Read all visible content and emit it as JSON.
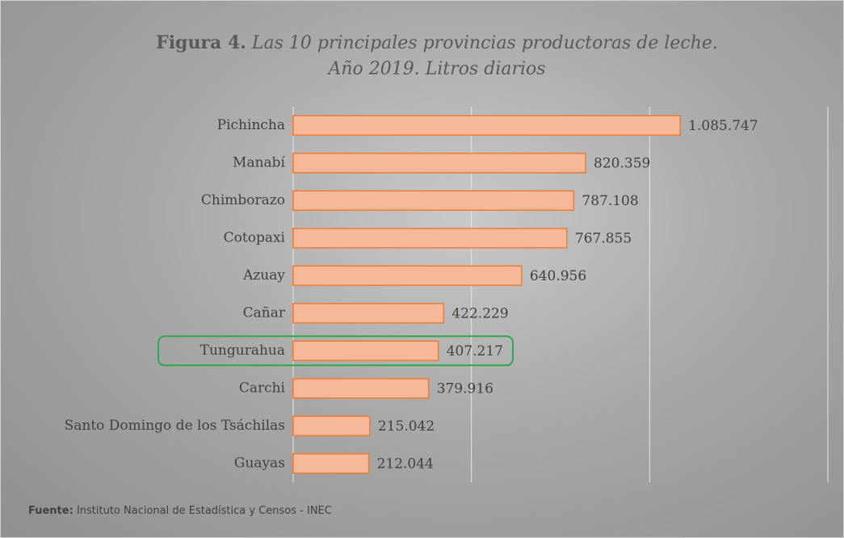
{
  "chart_data": {
    "type": "bar",
    "orientation": "horizontal",
    "figure_label": "Figura 4.",
    "title": "Las 10 principales provincias productoras de leche. Año 2019. Litros diarios",
    "categories": [
      "Pichincha",
      "Manabí",
      "Chimborazo",
      "Cotopaxi",
      "Azuay",
      "Cañar",
      "Tungurahua",
      "Carchi",
      "Santo Domingo de los Tsáchilas",
      "Guayas"
    ],
    "values": [
      1085747,
      820359,
      787108,
      767855,
      640956,
      422229,
      407217,
      379916,
      215042,
      212044
    ],
    "value_labels": [
      "1.085.747",
      "820.359",
      "787.108",
      "767.855",
      "640.956",
      "422.229",
      "407.217",
      "379.916",
      "215.042",
      "212.044"
    ],
    "color": "#f7b89a",
    "edge_color": "#ed7d31",
    "xlim": [
      0,
      1500000
    ],
    "xticks": [
      0,
      500000,
      1000000,
      1500000
    ],
    "grid": true,
    "highlight_index": 6,
    "highlight_color": "#2ea84a",
    "source_label": "Fuente:",
    "source": "Instituto Nacional de Estadística y Censos - INEC"
  }
}
